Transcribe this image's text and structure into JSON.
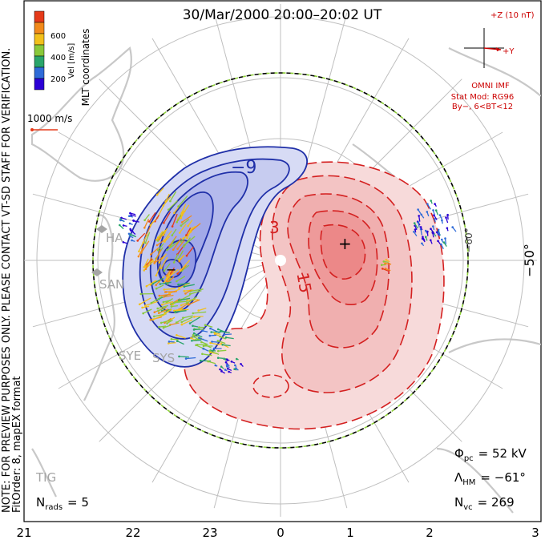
{
  "header": {
    "title": "30/Mar/2000 20:00–20:02 UT"
  },
  "colorbar": {
    "label": "Vel [m/s]",
    "ticks": [
      "600",
      "400",
      "200"
    ],
    "colors": [
      "#2b00d6",
      "#2f6bd8",
      "#2aa56b",
      "#8ac93a",
      "#f2c01b",
      "#f28a1b",
      "#e53a1a"
    ]
  },
  "coords_label": "MLT coordinates",
  "scale_vector": {
    "label": "1000 m/s"
  },
  "imf": {
    "z_label": "+Z (10 nT)",
    "y_label": "+Y",
    "source": "OMNI IMF",
    "model_line1": "Stat Mod: RG96",
    "model_line2": "By−, 6<BT<12"
  },
  "notes": {
    "preview": "NOTE: FOR PREVIEW PURPOSES ONLY. PLEASE CONTACT VT-SD STAFF FOR VERIFICATION.",
    "fit": "FitOrder: 8, mapEX format"
  },
  "contours": {
    "neg_label": "−9",
    "pos_label1": "3",
    "pos_label2": "15",
    "max_marker": "+",
    "min_marker": "−"
  },
  "lat_labels": {
    "right_outer": "−50°",
    "right_inner": "−60°"
  },
  "radars": {
    "hal": "HA",
    "san": "SAN",
    "sye": "SYE",
    "sys": "SYS",
    "tig": "TIG"
  },
  "stats": {
    "phi_sym": "Φ",
    "phi_sub": "pc",
    "phi_val": "= 52 kV",
    "lam_sym": "Λ",
    "lam_sub": "HM",
    "lam_val": "= −61°",
    "nvc_sym": "N",
    "nvc_sub": "vc",
    "nvc_val": "= 269",
    "nrads_sym": "N",
    "nrads_sub": "rads",
    "nrads_val": "= 5"
  },
  "mlt_axis": [
    "21",
    "22",
    "23",
    "0",
    "1",
    "2",
    "3"
  ],
  "colors": {
    "positive": "#d42020",
    "negative": "#1f2fa8",
    "fill_pos": "#f5c8c8",
    "fill_neg": "#c9cdf0",
    "grid": "#bfbfbf",
    "land": "#c8c8c8"
  }
}
